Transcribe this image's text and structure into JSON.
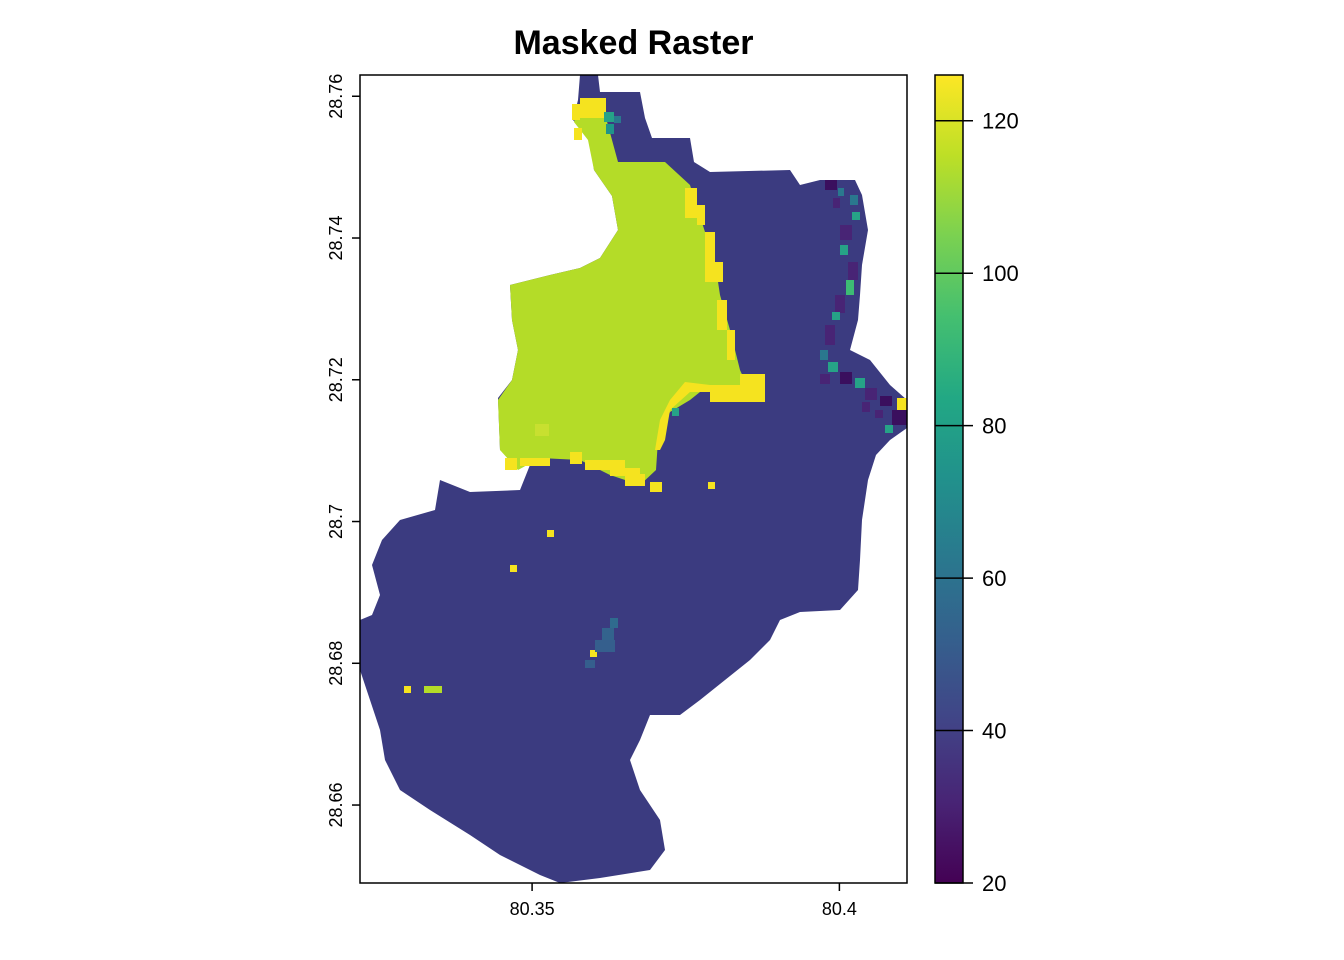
{
  "title": "Masked Raster",
  "colors": {
    "base": "#3b3b80",
    "plateau": "#b4dc28",
    "yellow": "#f5e31f",
    "teal": "#26a387",
    "dark": "#3a0f5e",
    "axis": "#000000"
  },
  "chart_data": {
    "type": "heatmap",
    "title": "Masked Raster",
    "x_ticks": [
      "80.35",
      "80.4"
    ],
    "y_ticks": [
      "28.76",
      "28.74",
      "28.72",
      "28.7",
      "28.68",
      "28.66"
    ],
    "xlim": [
      80.322,
      80.411
    ],
    "ylim": [
      28.649,
      28.763
    ],
    "legend": {
      "position": "right",
      "ticks": [
        "20",
        "40",
        "60",
        "80",
        "100",
        "120"
      ],
      "range": [
        20,
        126
      ],
      "palette": "viridis"
    }
  }
}
